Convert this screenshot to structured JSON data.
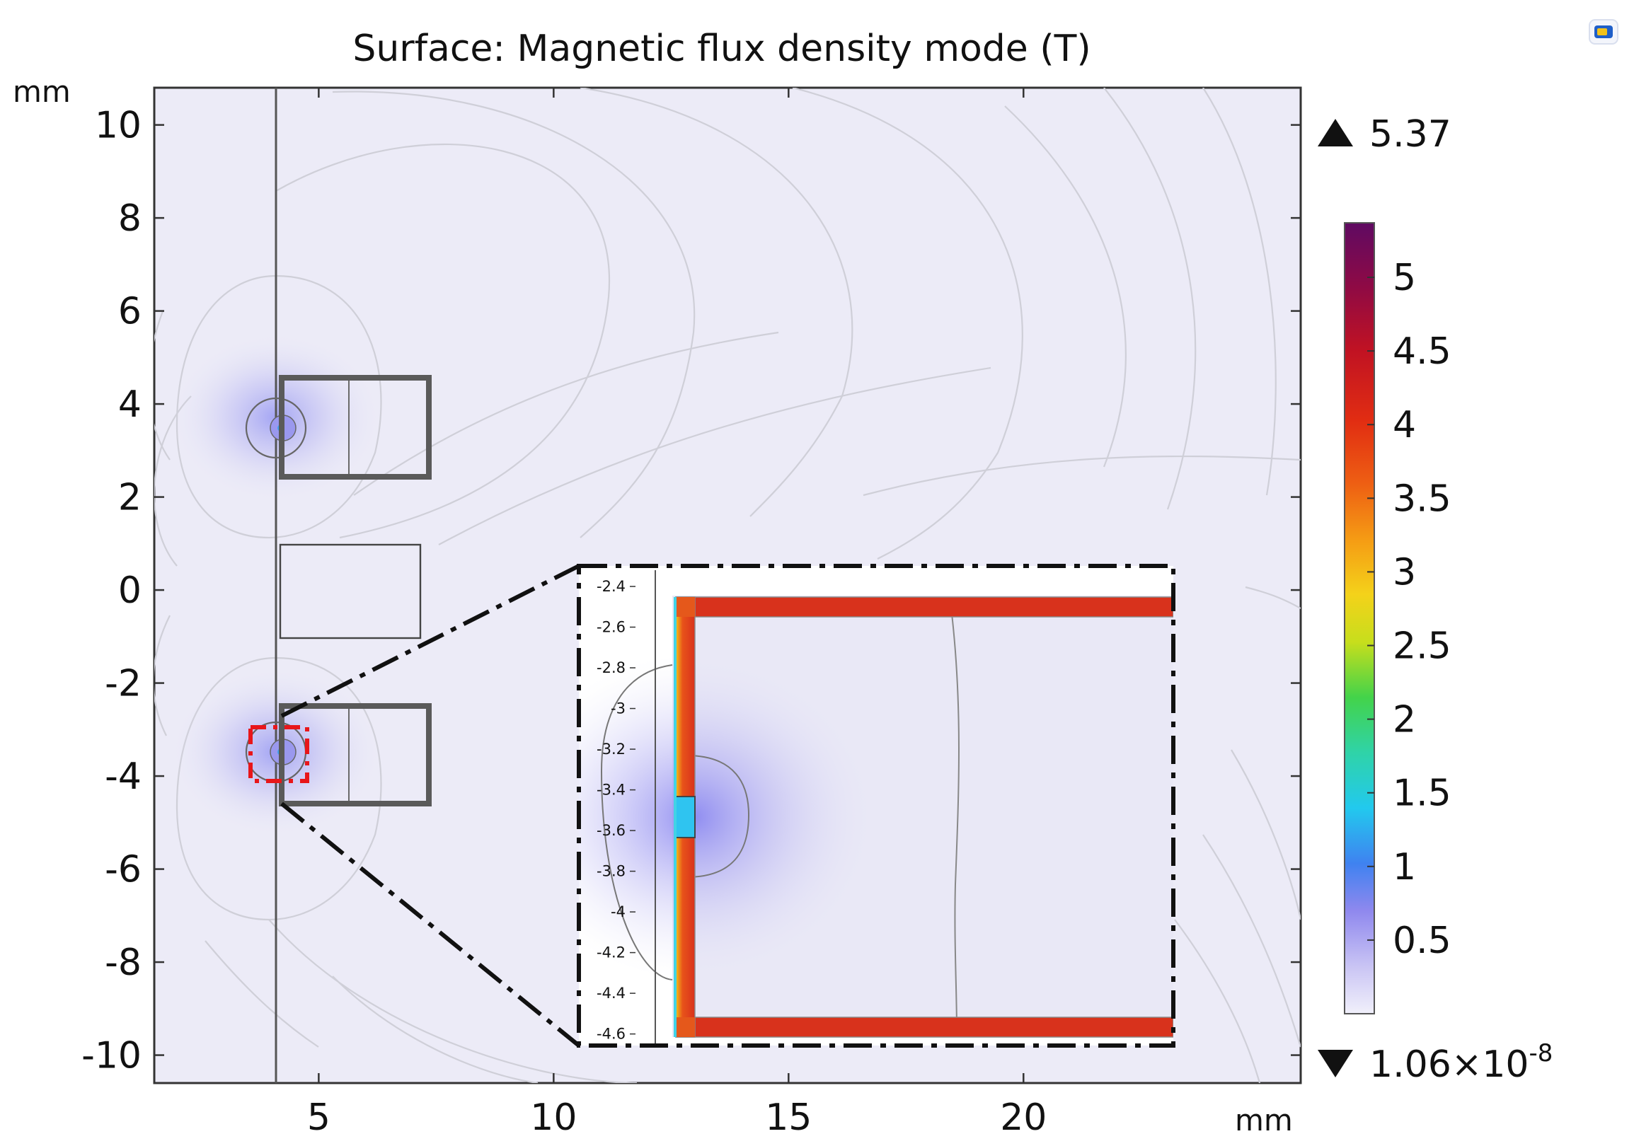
{
  "chart_data": {
    "type": "heatmap",
    "title": "Surface: Magnetic flux density mode (T)",
    "x_unit": "mm",
    "y_unit": "mm",
    "xlim": [
      1.5,
      25.9
    ],
    "ylim": [
      -10.6,
      10.8
    ],
    "x_ticks": [
      5,
      10,
      15,
      20
    ],
    "y_ticks": [
      10,
      8,
      6,
      4,
      2,
      0,
      -2,
      -4,
      -6,
      -8,
      -10
    ],
    "x_tick_labels": [
      "5",
      "10",
      "15",
      "20"
    ],
    "y_tick_labels": [
      "10",
      "8",
      "6",
      "4",
      "2",
      "0",
      "-2",
      "-4",
      "-6",
      "-8",
      "-10"
    ],
    "axis_line_x": 4.1,
    "geometry": {
      "upper_yoke": {
        "x": [
          4.1,
          7.3
        ],
        "y": [
          2.5,
          4.6
        ],
        "divider_x": 5.7
      },
      "center_block": {
        "x": [
          4.1,
          7.1
        ],
        "y": [
          -1.0,
          1.0
        ]
      },
      "lower_yoke": {
        "x": [
          4.1,
          7.3
        ],
        "y": [
          -4.6,
          -2.5
        ],
        "divider_x": 5.7
      },
      "upper_gap_center": {
        "x": 4.2,
        "y": 3.5
      },
      "lower_gap_center": {
        "x": 4.2,
        "y": -3.5
      },
      "zoom_region": {
        "x": [
          3.85,
          4.75
        ],
        "y": [
          -4.1,
          -2.9
        ]
      }
    },
    "colorbar": {
      "label_max": "5.37",
      "label_min": "1.06×10",
      "label_min_exponent": "-8",
      "max": 5.37,
      "min": 1.06e-08,
      "colormap": "rainbow-light",
      "ticks": [
        5,
        4.5,
        4,
        3.5,
        3,
        2.5,
        2,
        1.5,
        1,
        0.5
      ],
      "tick_labels": [
        "5",
        "4.5",
        "4",
        "3.5",
        "3",
        "2.5",
        "2",
        "1.5",
        "1",
        "0.5"
      ]
    },
    "inset": {
      "description_free": true,
      "y_range": [
        -4.65,
        -2.32
      ],
      "y_ticks": [
        -2.4,
        -2.6,
        -2.8,
        -3,
        -3.2,
        -3.4,
        -3.6,
        -3.8,
        -4,
        -4.2,
        -4.4,
        -4.6
      ],
      "y_tick_labels": [
        "-2.4",
        "-2.6",
        "-2.8",
        "-3",
        "-3.2",
        "-3.4",
        "-3.6",
        "-3.8",
        "-4",
        "-4.2",
        "-4.4",
        "-4.6"
      ],
      "yoke_field_T": 4.1,
      "gap_field_T": 1.1,
      "gap_y": [
        -3.58,
        -3.42
      ]
    }
  },
  "colors": {
    "background_field": "#ecebf7",
    "yoke_outline": "#555555",
    "contour": "#cfcfd8",
    "zoom_marker": "#e8161a",
    "frame": "#000000"
  },
  "icons": {
    "corner_logo": "app-logo-icon"
  }
}
